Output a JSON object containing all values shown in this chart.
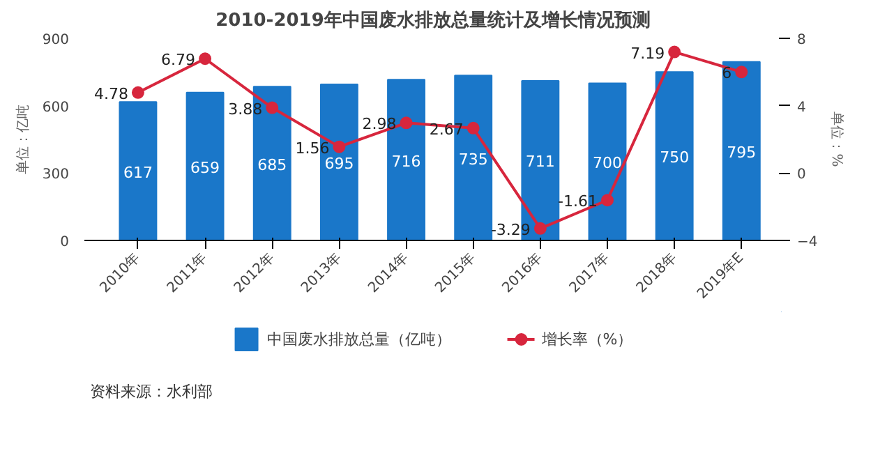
{
  "chart_data": {
    "type": "bar",
    "title": "2010-2019年中国废水排放总量统计及增长情况预测",
    "categories": [
      "2010年",
      "2011年",
      "2012年",
      "2013年",
      "2014年",
      "2015年",
      "2016年",
      "2017年",
      "2018年",
      "2019年E"
    ],
    "series": [
      {
        "name": "中国废水排放总量（亿吨）",
        "color": "#1a77c9",
        "values": [
          617,
          659,
          685,
          695,
          716,
          735,
          711,
          700,
          750,
          795
        ]
      },
      {
        "name": "增长率（%）",
        "type": "line",
        "axis": "y2",
        "color": "#d7263d",
        "marker": "circle",
        "values": [
          4.78,
          6.79,
          3.88,
          1.56,
          2.98,
          2.67,
          -3.29,
          -1.61,
          7.19,
          6
        ]
      }
    ],
    "ylabel": "单位：亿吨",
    "y2label": "单位：%",
    "ylim": [
      0,
      900
    ],
    "yticks": [
      0,
      300,
      600,
      900
    ],
    "y2lim": [
      -4,
      8
    ],
    "y2ticks": [
      -4,
      0,
      4,
      8
    ],
    "data_labels": true,
    "grid": false,
    "legend": "bottom",
    "annotations": [
      "资料来源：水利部"
    ]
  }
}
